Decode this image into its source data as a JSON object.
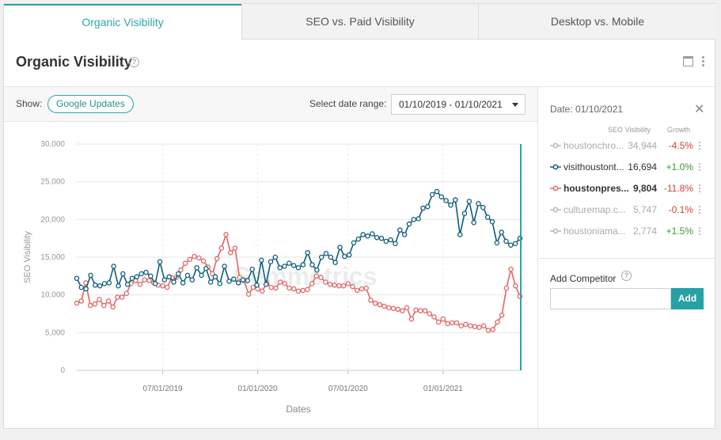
{
  "tabs": [
    {
      "label": "Organic Visibility",
      "active": true
    },
    {
      "label": "SEO vs. Paid Visibility",
      "active": false
    },
    {
      "label": "Desktop vs. Mobile",
      "active": false
    }
  ],
  "header": {
    "title": "Organic Visibility"
  },
  "toolbar": {
    "show_label": "Show:",
    "google_updates_label": "Google Updates",
    "date_range_label": "Select date range:",
    "date_range_value": "01/10/2019 - 01/10/2021"
  },
  "colors": {
    "accent": "#2aa4a8",
    "blue_series": "#0e5d7a",
    "red_series": "#e06666",
    "positive": "#3a9a3a",
    "negative": "#d9403a"
  },
  "sidebar": {
    "date": "Date: 01/10/2021",
    "col_visibility": "SEO Visibility",
    "col_growth": "Growth",
    "competitors": [
      {
        "name": "houstonchro...",
        "value": "34,944",
        "growth": "-4.5%",
        "active": false,
        "bold": false
      },
      {
        "name": "visithoustont...",
        "value": "16,694",
        "growth": "+1.0%",
        "active": true,
        "bold": false
      },
      {
        "name": "houstonpres...",
        "value": "9,804",
        "growth": "-11.8%",
        "active": true,
        "bold": true
      },
      {
        "name": "culturemap.c...",
        "value": "5,747",
        "growth": "-0.1%",
        "active": false,
        "bold": false
      },
      {
        "name": "houstoniama...",
        "value": "2,774",
        "growth": "+1.5%",
        "active": false,
        "bold": false
      }
    ],
    "add_label": "Add Competitor",
    "add_placeholder": "",
    "add_button": "Add"
  },
  "chart_data": {
    "type": "line",
    "ylabel": "SEO Visibility",
    "xlabel": "Dates",
    "ylim": [
      0,
      30000
    ],
    "yticks": [
      "0",
      "5,000",
      "10,000",
      "15,000",
      "20,000",
      "25,000",
      "30,000"
    ],
    "xticks": [
      {
        "label": "07/01/2019",
        "i": 19
      },
      {
        "label": "01/01/2020",
        "i": 39
      },
      {
        "label": "07/01/2020",
        "i": 59
      },
      {
        "label": "01/01/2021",
        "i": 79
      }
    ],
    "watermark": "semrush-like watermark",
    "series": [
      {
        "name": "visithoustont...",
        "color": "#0e5d7a",
        "values": [
          12200,
          11000,
          10800,
          12600,
          11300,
          11200,
          11500,
          11600,
          13800,
          11200,
          12800,
          11400,
          12200,
          12400,
          12800,
          13000,
          12500,
          11500,
          14400,
          12000,
          12400,
          11700,
          12800,
          11600,
          12600,
          12000,
          13600,
          12600,
          13500,
          11700,
          12400,
          11500,
          13800,
          11800,
          12100,
          11600,
          12000,
          11900,
          13400,
          11300,
          14600,
          11400,
          14400,
          15000,
          13600,
          13800,
          14200,
          13900,
          13600,
          14000,
          15600,
          14000,
          13300,
          15000,
          15500,
          15000,
          14300,
          16300,
          15100,
          15300,
          16900,
          17400,
          18000,
          17800,
          18100,
          17600,
          17500,
          17100,
          17300,
          16800,
          18600,
          18000,
          19400,
          20000,
          20100,
          21500,
          21700,
          23300,
          23700,
          23000,
          22500,
          21900,
          22600,
          18000,
          20800,
          22400,
          19600,
          22100,
          21600,
          20300,
          19700,
          16900,
          18300,
          17100,
          16600,
          16800,
          17500
        ],
        "values2": []
      }
    ]
  }
}
